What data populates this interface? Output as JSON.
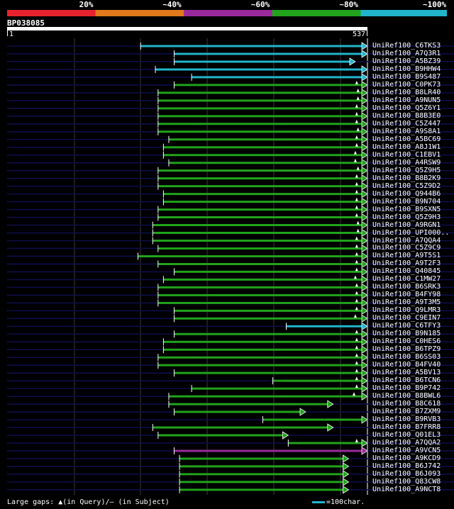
{
  "legend": {
    "segments": [
      {
        "color": "#e8232d",
        "label": "20%"
      },
      {
        "color": "#e07a1c",
        "label": "~40%"
      },
      {
        "color": "#9a2a9c",
        "label": "~60%"
      },
      {
        "color": "#21a31c",
        "label": "~80%"
      },
      {
        "color": "#22b4cc",
        "label": "~100%"
      }
    ]
  },
  "query": {
    "name": "BP038085",
    "start": "1",
    "end": "537",
    "length": 537
  },
  "colors": {
    "cyan": "#22b4cc",
    "green": "#21a31c",
    "magenta": "#9a2a9c",
    "navy": "#0e0e4a",
    "grid": "#3a3a3a"
  },
  "hits": [
    {
      "name": "UniRef100_C6TKS3",
      "start": 200,
      "end": 537,
      "color": "cyan",
      "arrowAt": 537,
      "marker": null
    },
    {
      "name": "UniRef100_A7Q3R1",
      "start": 250,
      "end": 537,
      "color": "cyan",
      "arrowAt": 537,
      "marker": null
    },
    {
      "name": "UniRef100_A5BZ39",
      "start": 250,
      "end": 519,
      "color": "cyan",
      "arrowAt": 519,
      "marker": null
    },
    {
      "name": "UniRef100_B9HHW4",
      "start": 222,
      "end": 537,
      "color": "cyan",
      "arrowAt": 537,
      "marker": null
    },
    {
      "name": "UniRef100_B9S487",
      "start": 276,
      "end": 537,
      "color": "cyan",
      "arrowAt": 537,
      "marker": null
    },
    {
      "name": "UniRef100_C0PK73",
      "start": 250,
      "end": 537,
      "color": "green",
      "arrowAt": 537,
      "marker": 522
    },
    {
      "name": "UniRef100_B8LR40",
      "start": 226,
      "end": 537,
      "color": "green",
      "arrowAt": 537,
      "marker": 524
    },
    {
      "name": "UniRef100_A9NUN5",
      "start": 226,
      "end": 537,
      "color": "green",
      "arrowAt": 537,
      "marker": 524
    },
    {
      "name": "UniRef100_Q5Z6Y1",
      "start": 226,
      "end": 537,
      "color": "green",
      "arrowAt": 537,
      "marker": 522
    },
    {
      "name": "UniRef100_B8B3E0",
      "start": 226,
      "end": 537,
      "color": "green",
      "arrowAt": 537,
      "marker": 522
    },
    {
      "name": "UniRef100_C5Z447",
      "start": 226,
      "end": 537,
      "color": "green",
      "arrowAt": 537,
      "marker": 522
    },
    {
      "name": "UniRef100_A9S8A1",
      "start": 226,
      "end": 537,
      "color": "green",
      "arrowAt": 537,
      "marker": 524
    },
    {
      "name": "UniRef100_A5BC69",
      "start": 242,
      "end": 537,
      "color": "green",
      "arrowAt": 537,
      "marker": 522
    },
    {
      "name": "UniRef100_A8J1W1",
      "start": 234,
      "end": 537,
      "color": "green",
      "arrowAt": 537,
      "marker": 522
    },
    {
      "name": "UniRef100_C1EBV1",
      "start": 234,
      "end": 537,
      "color": "green",
      "arrowAt": 537,
      "marker": 520
    },
    {
      "name": "UniRef100_A4RSW9",
      "start": 242,
      "end": 537,
      "color": "green",
      "arrowAt": 537,
      "marker": 520
    },
    {
      "name": "UniRef100_Q5Z9H5",
      "start": 226,
      "end": 537,
      "color": "green",
      "arrowAt": 537,
      "marker": 524
    },
    {
      "name": "UniRef100_B8B2K9",
      "start": 226,
      "end": 537,
      "color": "green",
      "arrowAt": 537,
      "marker": 522
    },
    {
      "name": "UniRef100_C5Z9D2",
      "start": 226,
      "end": 537,
      "color": "green",
      "arrowAt": 537,
      "marker": 522
    },
    {
      "name": "UniRef100_Q944B6",
      "start": 234,
      "end": 537,
      "color": "green",
      "arrowAt": 537,
      "marker": 522
    },
    {
      "name": "UniRef100_B9N704",
      "start": 234,
      "end": 537,
      "color": "green",
      "arrowAt": 537,
      "marker": 522
    },
    {
      "name": "UniRef100_B9SXN5",
      "start": 226,
      "end": 537,
      "color": "green",
      "arrowAt": 537,
      "marker": 522
    },
    {
      "name": "UniRef100_Q5Z9H3",
      "start": 226,
      "end": 537,
      "color": "green",
      "arrowAt": 537,
      "marker": 522
    },
    {
      "name": "UniRef100_A9RGN1",
      "start": 218,
      "end": 537,
      "color": "green",
      "arrowAt": 537,
      "marker": 524
    },
    {
      "name": "UniRef100_UPI000..",
      "start": 218,
      "end": 537,
      "color": "green",
      "arrowAt": 537,
      "marker": 524
    },
    {
      "name": "UniRef100_A7QQA4",
      "start": 218,
      "end": 537,
      "color": "green",
      "arrowAt": 537,
      "marker": 522
    },
    {
      "name": "UniRef100_C5Z9C9",
      "start": 226,
      "end": 537,
      "color": "green",
      "arrowAt": 537,
      "marker": 522
    },
    {
      "name": "UniRef100_A9T5S1",
      "start": 196,
      "end": 537,
      "color": "green",
      "arrowAt": 537,
      "marker": 522
    },
    {
      "name": "UniRef100_A9T2F3",
      "start": 226,
      "end": 537,
      "color": "green",
      "arrowAt": 537,
      "marker": 522
    },
    {
      "name": "UniRef100_Q40845",
      "start": 250,
      "end": 537,
      "color": "green",
      "arrowAt": 537,
      "marker": 522
    },
    {
      "name": "UniRef100_C1MW27",
      "start": 234,
      "end": 537,
      "color": "green",
      "arrowAt": 537,
      "marker": 520
    },
    {
      "name": "UniRef100_B6SRK3",
      "start": 226,
      "end": 537,
      "color": "green",
      "arrowAt": 537,
      "marker": 522
    },
    {
      "name": "UniRef100_B4FY98",
      "start": 226,
      "end": 537,
      "color": "green",
      "arrowAt": 537,
      "marker": 522
    },
    {
      "name": "UniRef100_A9T3M5",
      "start": 226,
      "end": 537,
      "color": "green",
      "arrowAt": 537,
      "marker": 522
    },
    {
      "name": "UniRef100_Q9LMR3",
      "start": 250,
      "end": 537,
      "color": "green",
      "arrowAt": 537,
      "marker": 522
    },
    {
      "name": "UniRef100_C9EIN7",
      "start": 250,
      "end": 537,
      "color": "green",
      "arrowAt": 537,
      "marker": 520
    },
    {
      "name": "UniRef100_C6TFY3",
      "start": 417,
      "end": 537,
      "color": "cyan",
      "arrowAt": 537,
      "marker": null
    },
    {
      "name": "UniRef100_B9N185",
      "start": 250,
      "end": 537,
      "color": "green",
      "arrowAt": 537,
      "marker": 522
    },
    {
      "name": "UniRef100_C0HES6",
      "start": 234,
      "end": 537,
      "color": "green",
      "arrowAt": 537,
      "marker": 522
    },
    {
      "name": "UniRef100_B6TPZ9",
      "start": 234,
      "end": 537,
      "color": "green",
      "arrowAt": 537,
      "marker": 522
    },
    {
      "name": "UniRef100_B6SS03",
      "start": 226,
      "end": 537,
      "color": "green",
      "arrowAt": 537,
      "marker": 522
    },
    {
      "name": "UniRef100_B4FV40",
      "start": 226,
      "end": 537,
      "color": "green",
      "arrowAt": 537,
      "marker": 522
    },
    {
      "name": "UniRef100_A5BV13",
      "start": 250,
      "end": 537,
      "color": "green",
      "arrowAt": 537,
      "marker": 522
    },
    {
      "name": "UniRef100_B6TCN6",
      "start": 397,
      "end": 537,
      "color": "green",
      "arrowAt": 537,
      "marker": 522
    },
    {
      "name": "UniRef100_B9P742",
      "start": 276,
      "end": 537,
      "color": "green",
      "arrowAt": 537,
      "marker": 522
    },
    {
      "name": "UniRef100_B8BWL6",
      "start": 242,
      "end": 537,
      "color": "green",
      "arrowAt": 537,
      "marker": 518
    },
    {
      "name": "UniRef100_B8C618",
      "start": 242,
      "end": 486,
      "color": "green",
      "arrowAt": 486,
      "marker": null
    },
    {
      "name": "UniRef100_B7ZXM9",
      "start": 250,
      "end": 445,
      "color": "green",
      "arrowAt": 445,
      "marker": null
    },
    {
      "name": "UniRef100_B9RVB3",
      "start": 382,
      "end": 537,
      "color": "green",
      "arrowAt": 537,
      "marker": null
    },
    {
      "name": "UniRef100_B7FRR8",
      "start": 218,
      "end": 486,
      "color": "green",
      "arrowAt": 486,
      "marker": null
    },
    {
      "name": "UniRef100_Q01EL3",
      "start": 226,
      "end": 419,
      "color": "green",
      "arrowAt": 419,
      "marker": null
    },
    {
      "name": "UniRef100_A7QQA2",
      "start": 420,
      "end": 537,
      "color": "green",
      "arrowAt": 537,
      "marker": 522
    },
    {
      "name": "UniRef100_A9VCN5",
      "start": 250,
      "end": 537,
      "color": "magenta",
      "arrowAt": 537,
      "marker": null
    },
    {
      "name": "UniRef100_A9KCD9",
      "start": 258,
      "end": 509,
      "color": "green",
      "arrowAt": 509,
      "marker": null
    },
    {
      "name": "UniRef100_B6J742",
      "start": 258,
      "end": 509,
      "color": "green",
      "arrowAt": 509,
      "marker": null
    },
    {
      "name": "UniRef100_B6J093",
      "start": 258,
      "end": 509,
      "color": "green",
      "arrowAt": 509,
      "marker": null
    },
    {
      "name": "UniRef100_Q83CW8",
      "start": 258,
      "end": 509,
      "color": "green",
      "arrowAt": 509,
      "marker": null
    },
    {
      "name": "UniRef100_A9NCT8",
      "start": 258,
      "end": 509,
      "color": "green",
      "arrowAt": 509,
      "marker": null
    }
  ],
  "footer": {
    "gaps_text": "Large gaps: ▲(in Query)/– (in Subject)",
    "scale_text": "=100char."
  }
}
